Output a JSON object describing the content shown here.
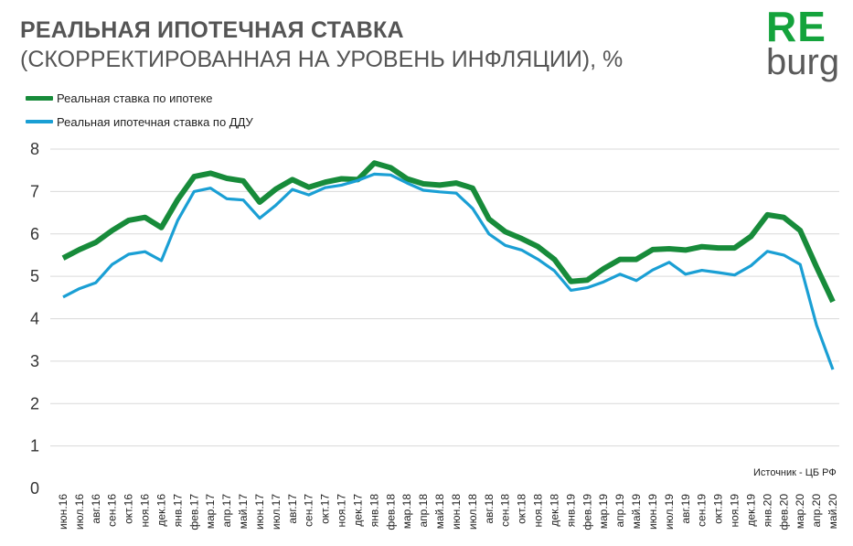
{
  "header": {
    "title": "РЕАЛЬНАЯ ИПОТЕЧНАЯ СТАВКА",
    "subtitle": "(СКОРРЕКТИРОВАННАЯ НА УРОВЕНЬ  ИНФЛЯЦИИ), %"
  },
  "logo": {
    "top": "RE",
    "bottom": "burg",
    "color": "#14a33c"
  },
  "source": "Источник  - ЦБ РФ",
  "colors": {
    "series1": "#178b3a",
    "series2": "#1a9fd4",
    "grid": "#d9d9d9"
  },
  "chart_data": {
    "type": "line",
    "title": "РЕАЛЬНАЯ ИПОТЕЧНАЯ СТАВКА",
    "subtitle": "(СКОРРЕКТИРОВАННАЯ НА УРОВЕНЬ  ИНФЛЯЦИИ), %",
    "xlabel": "",
    "ylabel": "",
    "ylim": [
      0,
      8
    ],
    "yticks": [
      0,
      1,
      2,
      3,
      4,
      5,
      6,
      7,
      8
    ],
    "grid": true,
    "legend_position": "top-left",
    "categories": [
      "июн.16",
      "июл.16",
      "авг.16",
      "сен.16",
      "окт.16",
      "ноя.16",
      "дек.16",
      "янв.17",
      "фев.17",
      "мар.17",
      "апр.17",
      "май.17",
      "июн.17",
      "июл.17",
      "авг.17",
      "сен.17",
      "окт.17",
      "ноя.17",
      "дек.17",
      "янв.18",
      "фев.18",
      "мар.18",
      "апр.18",
      "май.18",
      "июн.18",
      "июл.18",
      "авг.18",
      "сен.18",
      "окт.18",
      "ноя.18",
      "дек.18",
      "янв.19",
      "фев.19",
      "мар.19",
      "апр.19",
      "май.19",
      "июн.19",
      "июл.19",
      "авг.19",
      "сен.19",
      "окт.19",
      "ноя.19",
      "дек.19",
      "янв.20",
      "фев.20",
      "мар.20",
      "апр.20",
      "май.20"
    ],
    "series": [
      {
        "name": "Реальная ставка по ипотеке",
        "values": [
          5.43,
          5.63,
          5.8,
          6.08,
          6.32,
          6.39,
          6.15,
          6.81,
          7.35,
          7.43,
          7.31,
          7.25,
          6.75,
          7.06,
          7.28,
          7.1,
          7.22,
          7.3,
          7.28,
          7.67,
          7.56,
          7.3,
          7.18,
          7.15,
          7.2,
          7.08,
          6.35,
          6.05,
          5.89,
          5.7,
          5.4,
          4.88,
          4.91,
          5.18,
          5.4,
          5.4,
          5.63,
          5.65,
          5.62,
          5.7,
          5.67,
          5.67,
          5.94,
          6.45,
          6.39,
          6.08,
          5.22,
          4.4
        ]
      },
      {
        "name": "Реальная ипотечная ставка по ДДУ",
        "values": [
          4.51,
          4.71,
          4.85,
          5.28,
          5.52,
          5.58,
          5.37,
          6.32,
          7.0,
          7.08,
          6.83,
          6.8,
          6.37,
          6.68,
          7.05,
          6.92,
          7.09,
          7.15,
          7.26,
          7.41,
          7.39,
          7.2,
          7.03,
          6.99,
          6.96,
          6.6,
          6.0,
          5.73,
          5.62,
          5.4,
          5.13,
          4.67,
          4.73,
          4.87,
          5.05,
          4.9,
          5.15,
          5.33,
          5.05,
          5.14,
          5.09,
          5.03,
          5.25,
          5.59,
          5.5,
          5.28,
          3.85,
          2.8
        ]
      }
    ]
  }
}
